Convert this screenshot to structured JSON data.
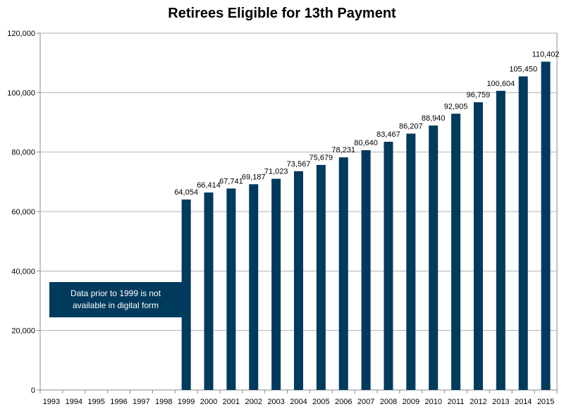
{
  "chart_data": {
    "type": "bar",
    "title": "Retirees Eligible for 13th Payment",
    "xlabel": "",
    "ylabel": "",
    "categories": [
      "1993",
      "1994",
      "1995",
      "1996",
      "1997",
      "1998",
      "1999",
      "2000",
      "2001",
      "2002",
      "2003",
      "2004",
      "2005",
      "2006",
      "2007",
      "2008",
      "2009",
      "2010",
      "2011",
      "2012",
      "2013",
      "2014",
      "2015"
    ],
    "values": [
      null,
      null,
      null,
      null,
      null,
      null,
      64054,
      66414,
      67741,
      69187,
      71023,
      73567,
      75679,
      78231,
      80640,
      83467,
      86207,
      88940,
      92905,
      96759,
      100604,
      105450,
      110402
    ],
    "data_labels": [
      "",
      "",
      "",
      "",
      "",
      "",
      "64,054",
      "66,414",
      "67,741",
      "69,187",
      "71,023",
      "73,567",
      "75,679",
      "78,231",
      "80,640",
      "83,467",
      "86,207",
      "88,940",
      "92,905",
      "96,759",
      "100,604",
      "105,450",
      "110,402"
    ],
    "ylim": [
      0,
      120000
    ],
    "yticks": [
      0,
      20000,
      40000,
      60000,
      80000,
      100000,
      120000
    ],
    "ytick_labels": [
      "0",
      "20,000",
      "40,000",
      "60,000",
      "80,000",
      "100,000",
      "120,000"
    ],
    "grid": true,
    "legend": "none",
    "bar_color": "#003a5d",
    "annotation": {
      "text": "Data prior to 1999 is not available in digital form",
      "background": "#003a5d",
      "text_color": "#ffffff"
    }
  }
}
